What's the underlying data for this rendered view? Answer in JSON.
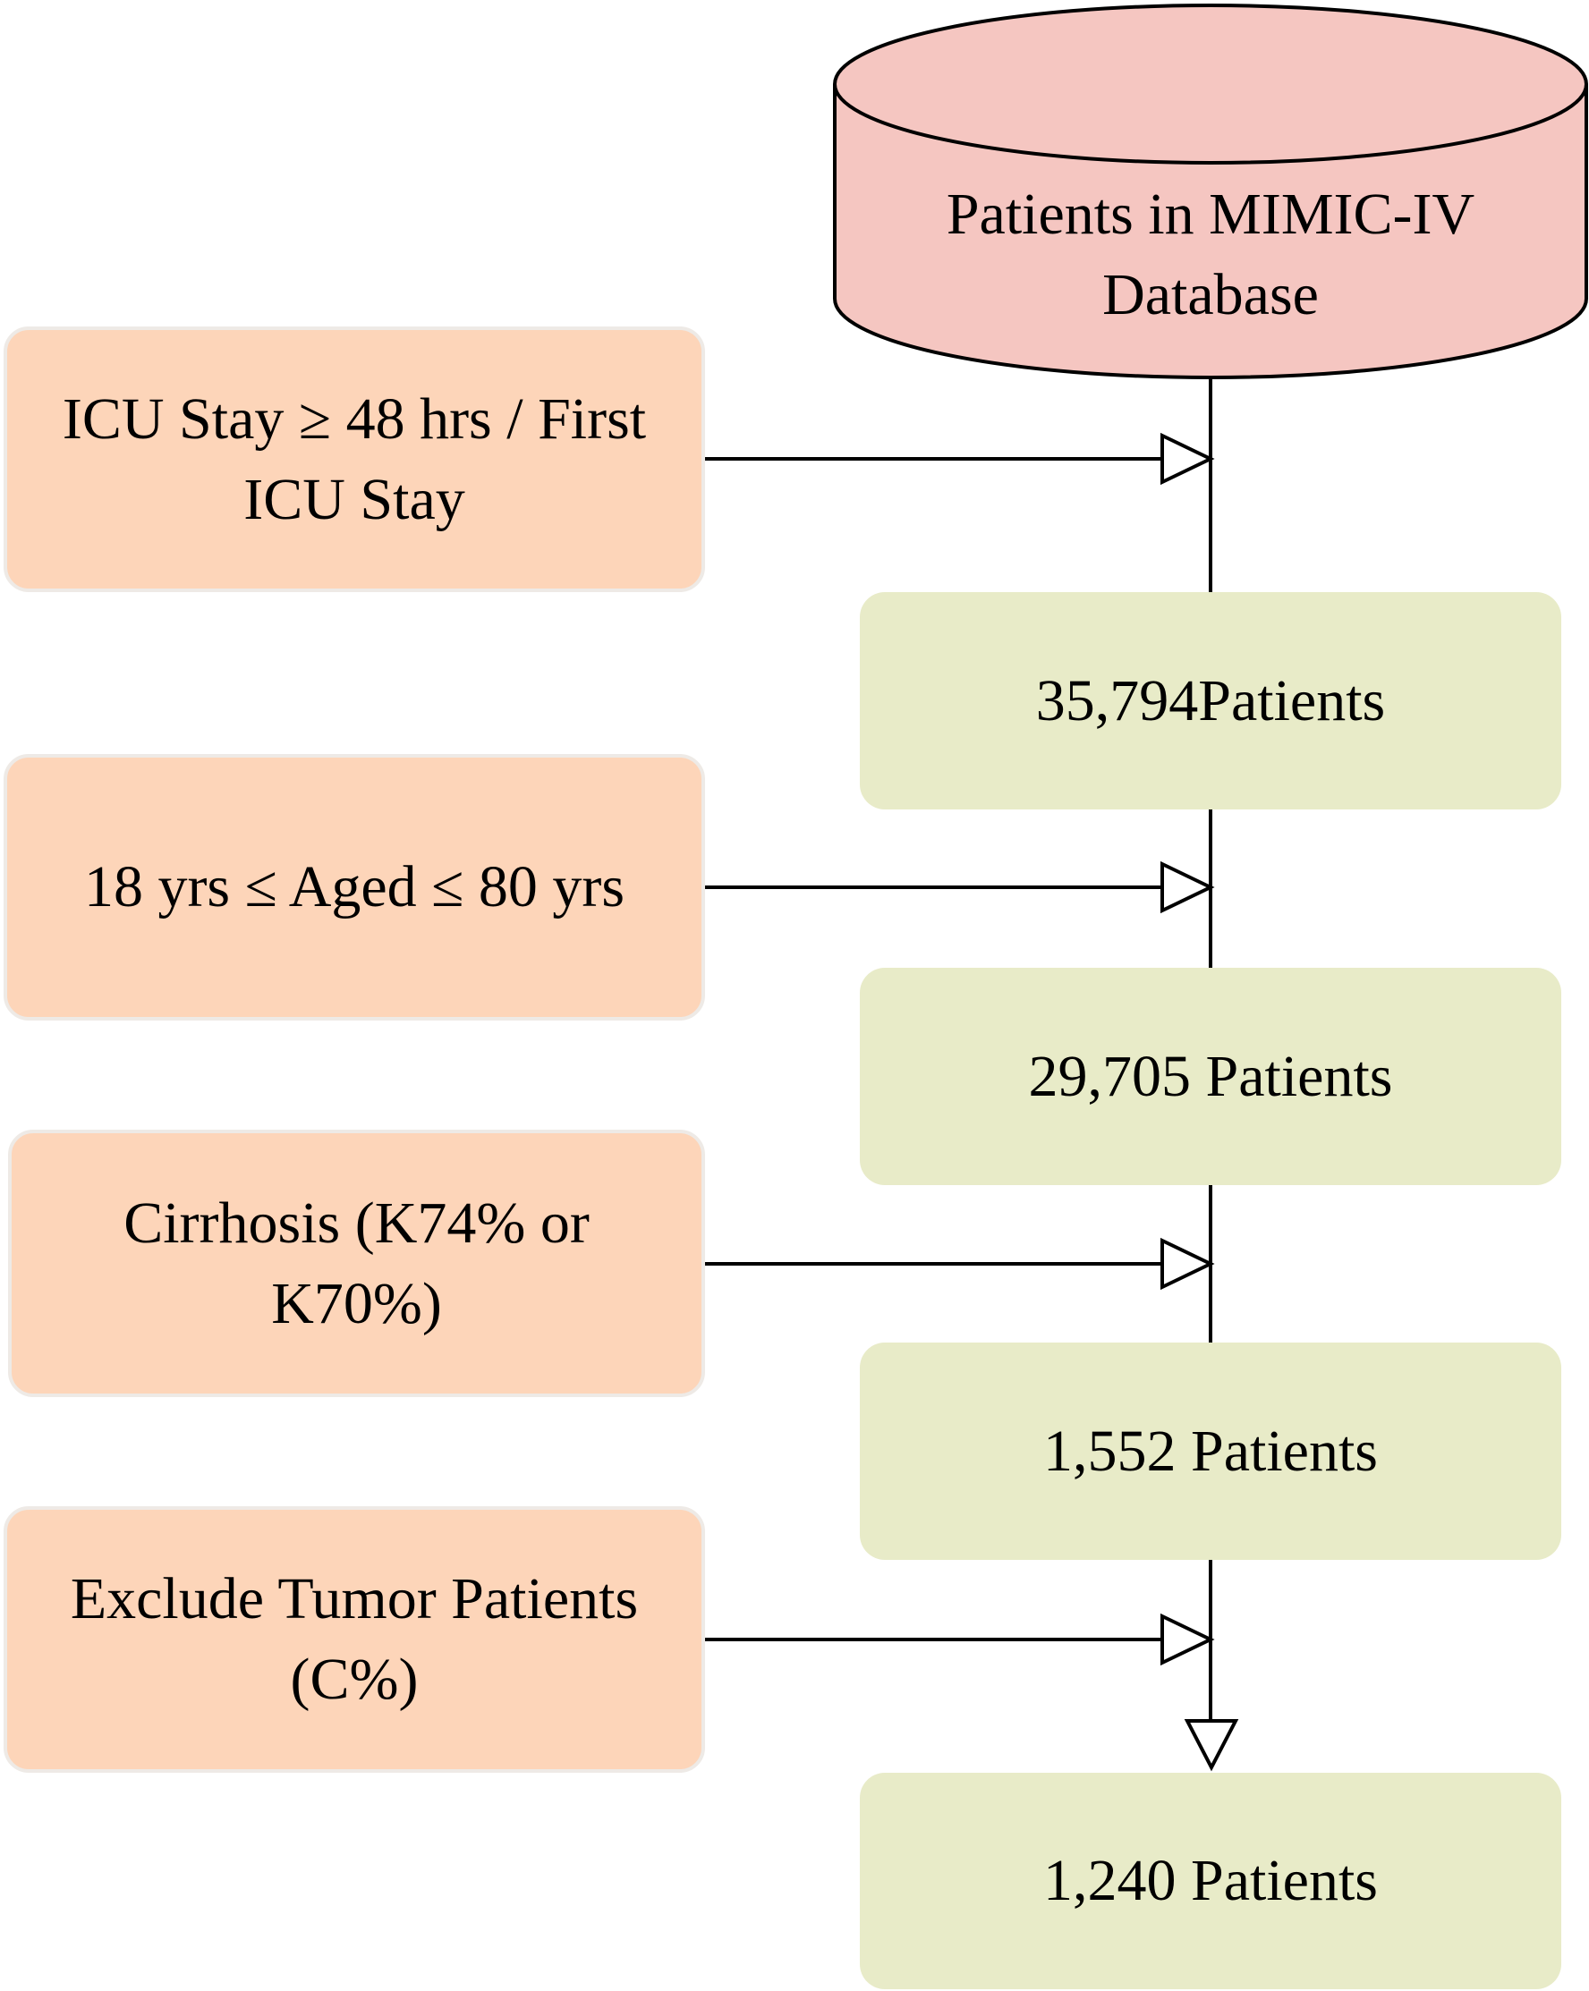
{
  "database": {
    "lines": [
      "Patients in MIMIC-IV",
      "Database"
    ]
  },
  "criteria": [
    {
      "lines": [
        "ICU Stay ≥ 48 hrs / First",
        "ICU Stay"
      ]
    },
    {
      "lines": [
        "18 yrs ≤ Aged ≤ 80 yrs"
      ]
    },
    {
      "lines": [
        "Cirrhosis (K74% or",
        "K70%)"
      ]
    },
    {
      "lines": [
        "Exclude Tumor Patients",
        "(C%)"
      ]
    }
  ],
  "counts": [
    "35,794Patients",
    "29,705 Patients",
    "1,552 Patients",
    "1,240 Patients"
  ]
}
